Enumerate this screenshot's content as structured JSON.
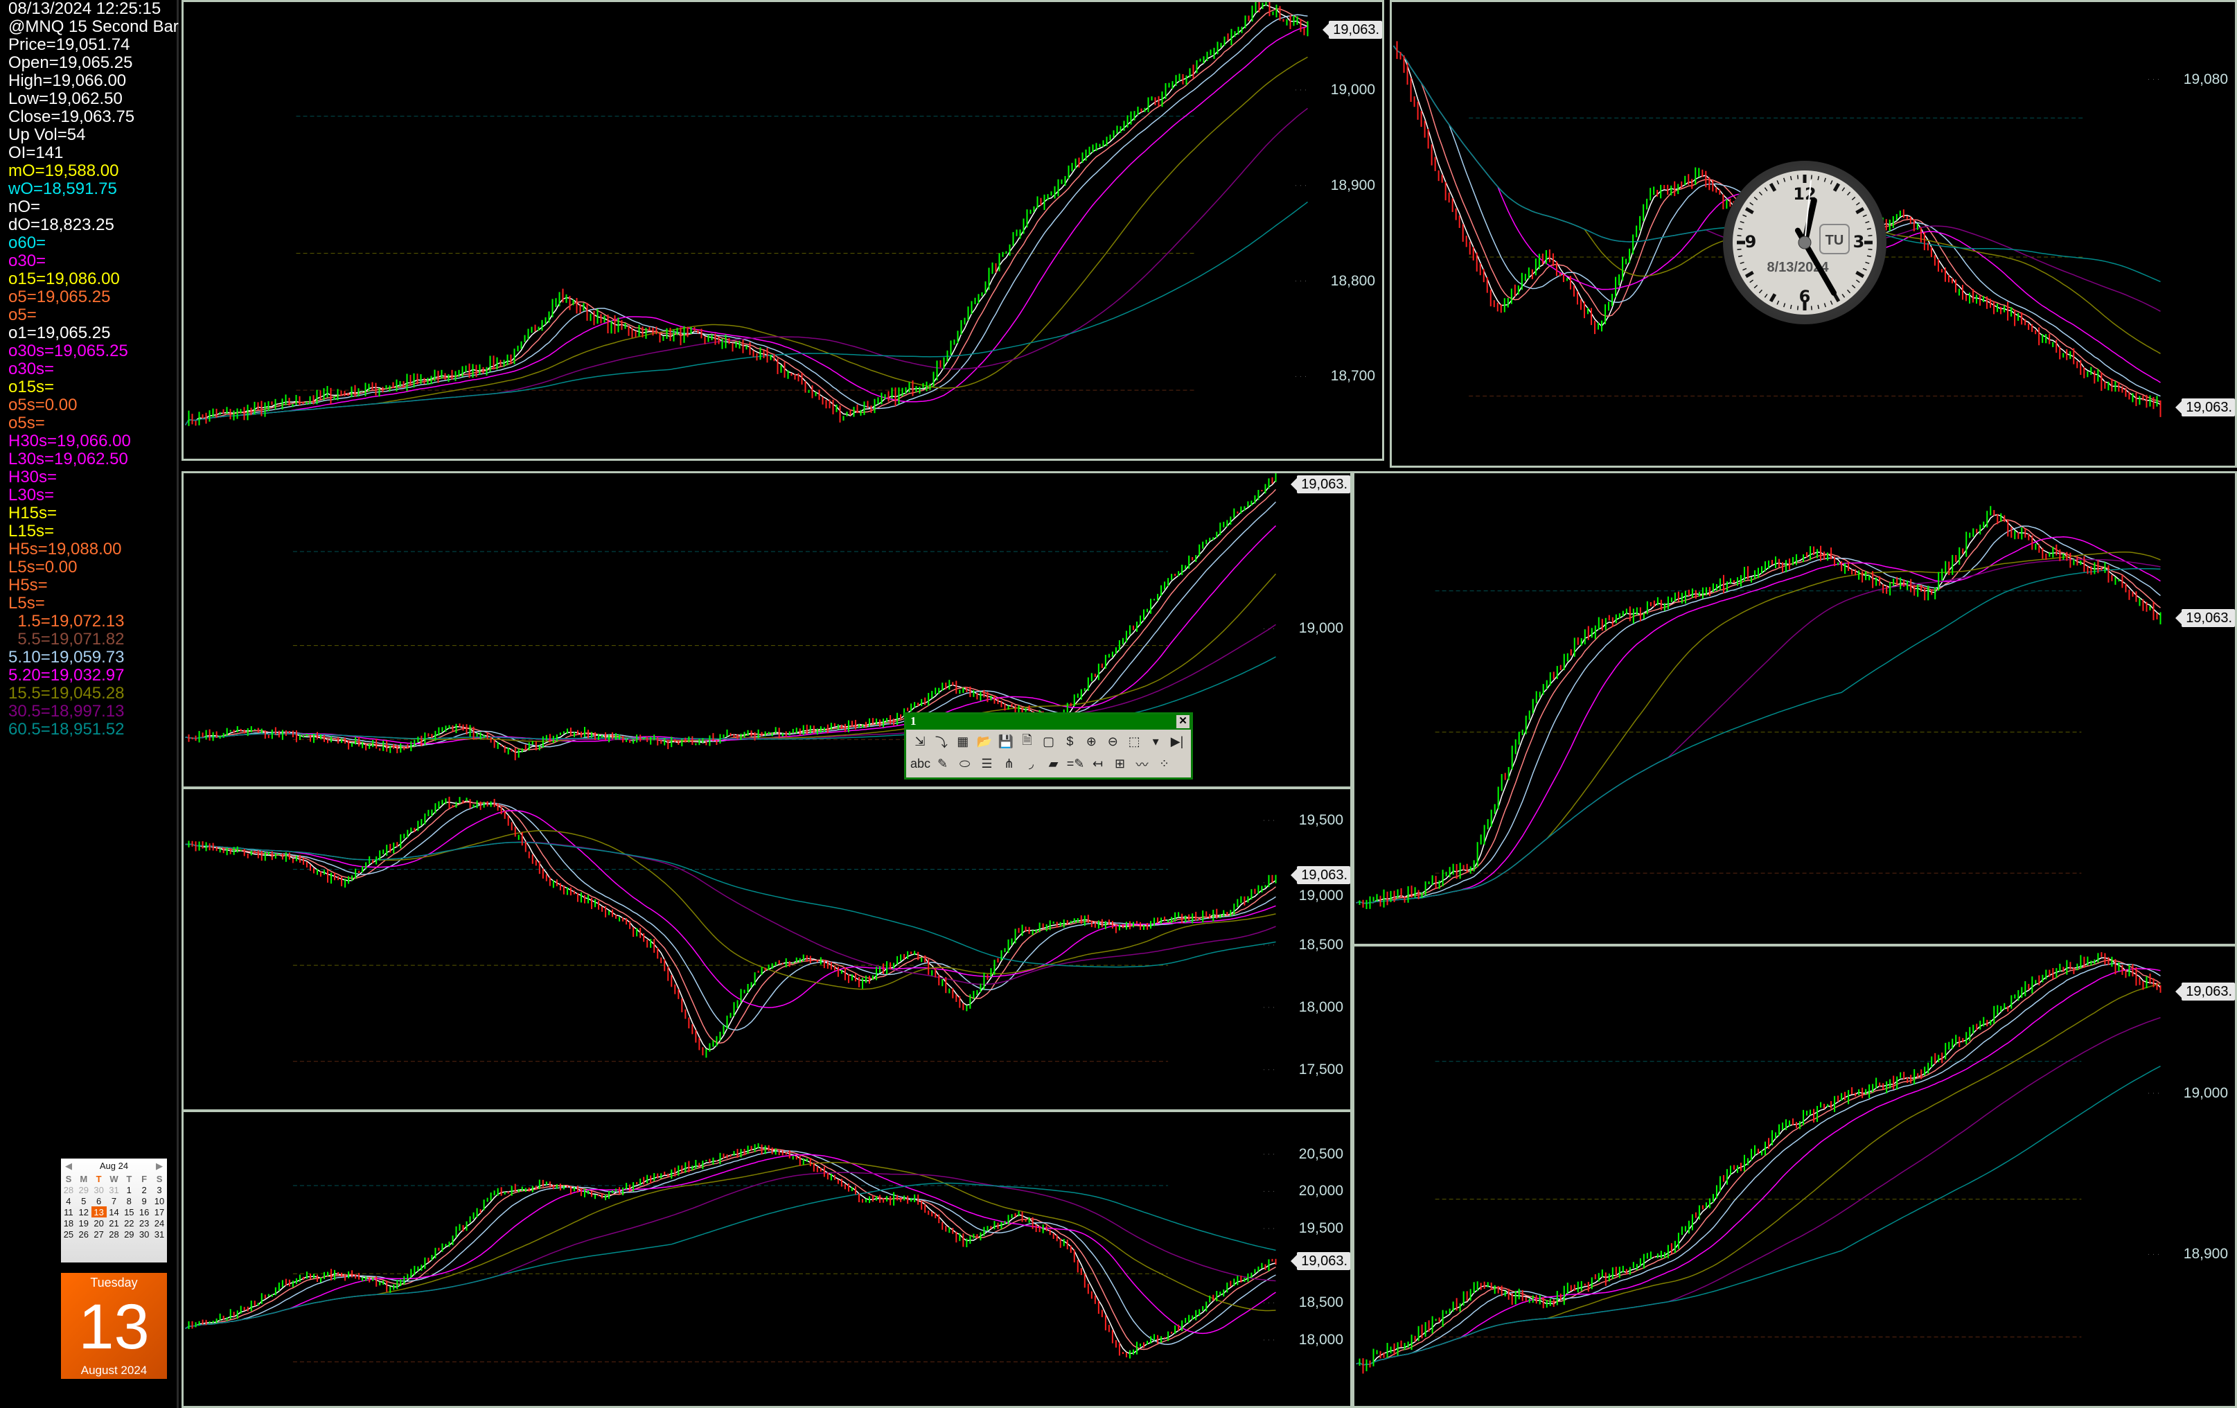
{
  "info": [
    {
      "t": "08/13/2024 12:25:15",
      "c": "#ffffff"
    },
    {
      "t": "@MNQ 15 Second Bar [",
      "c": "#ffffff"
    },
    {
      "t": "Price=19,051.74",
      "c": "#ffffff"
    },
    {
      "t": "Open=19,065.25",
      "c": "#ffffff"
    },
    {
      "t": "High=19,066.00",
      "c": "#ffffff"
    },
    {
      "t": "Low=19,062.50",
      "c": "#ffffff"
    },
    {
      "t": "Close=19,063.75",
      "c": "#ffffff"
    },
    {
      "t": "Up Vol=54",
      "c": "#ffffff"
    },
    {
      "t": "OI=141",
      "c": "#ffffff"
    },
    {
      "t": "mO=19,588.00",
      "c": "#ffff00"
    },
    {
      "t": "wO=18,591.75",
      "c": "#00e5ee"
    },
    {
      "t": "nO=",
      "c": "#ffffff"
    },
    {
      "t": "dO=18,823.25",
      "c": "#ffffff"
    },
    {
      "t": "o60=",
      "c": "#00e5ee"
    },
    {
      "t": "o30=",
      "c": "#ff00ff"
    },
    {
      "t": "o15=19,086.00",
      "c": "#ffff00"
    },
    {
      "t": "o5=19,065.25",
      "c": "#ff7030"
    },
    {
      "t": "o5=",
      "c": "#ff7030"
    },
    {
      "t": "o1=19,065.25",
      "c": "#ffffff"
    },
    {
      "t": "o30s=19,065.25",
      "c": "#ff00ff"
    },
    {
      "t": "o30s=",
      "c": "#ff00ff"
    },
    {
      "t": "o15s=",
      "c": "#ffff00"
    },
    {
      "t": "o5s=0.00",
      "c": "#ff7030"
    },
    {
      "t": "o5s=",
      "c": "#ff7030"
    },
    {
      "t": "H30s=19,066.00",
      "c": "#ff00ff"
    },
    {
      "t": "L30s=19,062.50",
      "c": "#ff00ff"
    },
    {
      "t": "H30s=",
      "c": "#ff00ff"
    },
    {
      "t": "L30s=",
      "c": "#ff00ff"
    },
    {
      "t": "H15s=",
      "c": "#ffff00"
    },
    {
      "t": "L15s=",
      "c": "#ffff00"
    },
    {
      "t": "H5s=19,088.00",
      "c": "#ff7030"
    },
    {
      "t": "L5s=0.00",
      "c": "#ff7030"
    },
    {
      "t": "H5s=",
      "c": "#ff7030"
    },
    {
      "t": "L5s=",
      "c": "#ff7030"
    },
    {
      "t": "  1.5=19,072.13",
      "c": "#ff7030"
    },
    {
      "t": "  5.5=19,071.82",
      "c": "#8b4a3a"
    },
    {
      "t": "5.10=19,059.73",
      "c": "#a8d0f0"
    },
    {
      "t": "5.20=19,032.97",
      "c": "#ff00ff"
    },
    {
      "t": "15.5=19,045.28",
      "c": "#808000"
    },
    {
      "t": "30.5=18,997.13",
      "c": "#800080"
    },
    {
      "t": "60.5=18,951.52",
      "c": "#008b8b"
    }
  ],
  "calendar": {
    "month": "Aug 24",
    "prev": "◀",
    "next": "▶",
    "days": [
      "S",
      "M",
      "T",
      "W",
      "T",
      "F",
      "S"
    ],
    "weeks": [
      [
        "28",
        "29",
        "30",
        "31",
        "1",
        "2",
        "3"
      ],
      [
        "4",
        "5",
        "6",
        "7",
        "8",
        "9",
        "10"
      ],
      [
        "11",
        "12",
        "13",
        "14",
        "15",
        "16",
        "17"
      ],
      [
        "18",
        "19",
        "20",
        "21",
        "22",
        "23",
        "24"
      ],
      [
        "25",
        "26",
        "27",
        "28",
        "29",
        "30",
        "31"
      ]
    ],
    "selected": "13"
  },
  "date_widget": {
    "weekday": "Tuesday",
    "day": "13",
    "month_year": "August 2024"
  },
  "clock": {
    "numerals": [
      "12",
      "3",
      "6",
      "9"
    ],
    "badge": "TU",
    "date": "8/13/2024",
    "time": "12:25"
  },
  "toolbar": {
    "title": "1",
    "close": "✕",
    "row1": [
      {
        "n": "import-icon",
        "g": "⇲"
      },
      {
        "n": "insert-window-icon",
        "g": "⤵"
      },
      {
        "n": "table-icon",
        "g": "▦"
      },
      {
        "n": "open-folder-icon",
        "g": "📂"
      },
      {
        "n": "save-all-icon",
        "g": "💾"
      },
      {
        "n": "save-page-icon",
        "g": "🗎"
      },
      {
        "n": "window-icon",
        "g": "▢"
      },
      {
        "n": "price-icon",
        "g": "$"
      },
      {
        "n": "zoom-in-icon",
        "g": "⊕"
      },
      {
        "n": "zoom-out-icon",
        "g": "⊖"
      },
      {
        "n": "chart-icon",
        "g": "⬚"
      },
      {
        "n": "dropdown-icon",
        "g": "▾"
      },
      {
        "n": "play-end-icon",
        "g": "▶|"
      }
    ],
    "row2": [
      {
        "n": "text-icon",
        "g": "abc"
      },
      {
        "n": "trendline-icon",
        "g": "✎"
      },
      {
        "n": "ellipse-icon",
        "g": "⬭"
      },
      {
        "n": "horizontal-lines-icon",
        "g": "☰"
      },
      {
        "n": "pitchfork-icon",
        "g": "⋔"
      },
      {
        "n": "arc-icon",
        "g": "◞"
      },
      {
        "n": "eraser-icon",
        "g": "▰"
      },
      {
        "n": "horizontal-line-icon",
        "g": "=✎"
      },
      {
        "n": "vertical-line-icon",
        "g": "↤"
      },
      {
        "n": "grid-text-icon",
        "g": "⊞"
      },
      {
        "n": "indicator-icon",
        "g": "〰"
      },
      {
        "n": "signal-icon",
        "g": "⁘"
      }
    ]
  },
  "colors": {
    "up": "#00ff00",
    "down": "#ff2020",
    "border": "#b8c8b8",
    "tag": "#e8e8e8"
  },
  "charts": [
    {
      "id": "p1",
      "ylim": [
        18614,
        19092
      ],
      "ticks": [
        "18,700",
        "18,800",
        "18,900",
        "19,000"
      ],
      "tickv": [
        18700,
        18800,
        18900,
        19000
      ],
      "last": "19,063.",
      "lastv": 19063,
      "path": [
        18655,
        18662,
        18670,
        18680,
        18688,
        18695,
        18705,
        18720,
        18785,
        18755,
        18745,
        18742,
        18730,
        18700,
        18660,
        18675,
        18700,
        18790,
        18870,
        18920,
        18960,
        19000,
        19040,
        19090,
        19063
      ]
    },
    {
      "id": "p2",
      "ylim": [
        19060,
        19084
      ],
      "ticks": [
        "19,080"
      ],
      "tickv": [
        19080
      ],
      "last": "19,063.",
      "lastv": 19063,
      "path": [
        19082,
        19074,
        19068,
        19071,
        19067,
        19074,
        19075,
        19072,
        19070,
        19072,
        19073,
        19069,
        19068,
        19066,
        19064,
        19063
      ]
    },
    {
      "id": "p3",
      "ylim": [
        18931,
        19068
      ],
      "ticks": [
        "19,000"
      ],
      "tickv": [
        19000
      ],
      "last": "19,063.",
      "lastv": 19063,
      "path": [
        18952,
        18955,
        18953,
        18950,
        18948,
        18958,
        18945,
        18955,
        18952,
        18950,
        18953,
        18955,
        18957,
        18960,
        18976,
        18966,
        18960,
        18990,
        19020,
        19045,
        19066
      ]
    },
    {
      "id": "p4",
      "ylim": [
        17182,
        19750
      ],
      "ticks": [
        "19,500",
        "19,000",
        "18,500",
        "18,000",
        "17,500"
      ],
      "tickv": [
        19500,
        19000,
        18500,
        18000,
        17500
      ],
      "last": "19,063.",
      "lastv": 19063,
      "path": [
        19300,
        19250,
        19200,
        19000,
        19300,
        19650,
        19620,
        19000,
        18800,
        18500,
        17600,
        18300,
        18400,
        18200,
        18450,
        18000,
        18600,
        18700,
        18650,
        18700,
        18750,
        19063
      ]
    },
    {
      "id": "p5",
      "ylim": [
        17113,
        21066
      ],
      "ticks": [
        "20,500",
        "20,000",
        "19,500",
        "18,500",
        "18,000"
      ],
      "tickv": [
        20500,
        20000,
        19500,
        18500,
        18000
      ],
      "last": "19,063.",
      "lastv": 19063,
      "path": [
        18200,
        18350,
        18800,
        18900,
        18700,
        19300,
        20000,
        20100,
        19900,
        20200,
        20400,
        20600,
        20400,
        19900,
        19900,
        19300,
        19700,
        19250,
        17800,
        18100,
        18700,
        19063
      ]
    },
    {
      "id": "p6",
      "ylim": [
        18980,
        19100
      ],
      "ticks": [],
      "tickv": [],
      "last": "19,063.",
      "lastv": 19063,
      "path": [
        18990,
        18993,
        19000,
        19040,
        19060,
        19065,
        19070,
        19075,
        19080,
        19072,
        19070,
        19090,
        19080,
        19075,
        19063
      ]
    },
    {
      "id": "p7",
      "ylim": [
        18806,
        19091
      ],
      "ticks": [
        "19,000",
        "18,900"
      ],
      "tickv": [
        19000,
        18900
      ],
      "last": "19,063.",
      "lastv": 19063,
      "path": [
        18830,
        18850,
        18880,
        18870,
        18885,
        18900,
        18950,
        18980,
        19000,
        19010,
        19040,
        19070,
        19085,
        19063
      ]
    }
  ]
}
